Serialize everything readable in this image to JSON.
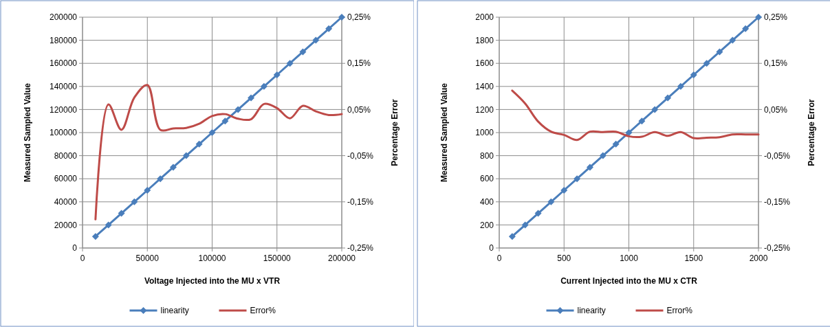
{
  "chart_data": [
    {
      "type": "line",
      "xlabel": "Voltage Injected into the MU x VTR",
      "ylabel": "Measured Sampled Value",
      "y2label": "Percentage Error",
      "x": [
        10000,
        20000,
        30000,
        40000,
        50000,
        60000,
        70000,
        80000,
        90000,
        100000,
        110000,
        120000,
        130000,
        140000,
        150000,
        160000,
        170000,
        180000,
        190000,
        200000
      ],
      "series": [
        {
          "name": "linearity",
          "color": "#4a7ebb",
          "marker": "diamond",
          "values": [
            10000,
            20000,
            30000,
            40000,
            50000,
            60000,
            70000,
            80000,
            90000,
            100000,
            110000,
            120000,
            130000,
            140000,
            150000,
            160000,
            170000,
            180000,
            190000,
            200000
          ]
        },
        {
          "name": "Error%",
          "color": "#be4b48",
          "marker": "none",
          "axis": "y2",
          "values": [
            -0.188,
            0.061,
            0.006,
            0.076,
            0.103,
            0.006,
            0.009,
            0.01,
            0.019,
            0.036,
            0.04,
            0.03,
            0.029,
            0.062,
            0.053,
            0.031,
            0.058,
            0.046,
            0.038,
            0.04
          ]
        }
      ],
      "xlim": [
        0,
        200000
      ],
      "xticks": [
        0,
        50000,
        100000,
        150000,
        200000
      ],
      "ylim": [
        0,
        200000
      ],
      "yticks": [
        0,
        20000,
        40000,
        60000,
        80000,
        100000,
        120000,
        140000,
        160000,
        180000,
        200000
      ],
      "y2lim": [
        -0.25,
        0.25
      ],
      "y2ticks": [
        {
          "value": -0.25,
          "label": "-0,25%"
        },
        {
          "value": -0.15,
          "label": "-0,15%"
        },
        {
          "value": -0.05,
          "label": "-0,05%"
        },
        {
          "value": 0.05,
          "label": "0,05%"
        },
        {
          "value": 0.15,
          "label": "0,15%"
        },
        {
          "value": 0.25,
          "label": "0,25%"
        }
      ],
      "grid": true,
      "legend": "bottom"
    },
    {
      "type": "line",
      "xlabel": "Current Injected into the MU x CTR",
      "ylabel": "Measured Sampled Value",
      "y2label": "Percentage Error",
      "x": [
        100,
        200,
        300,
        400,
        500,
        600,
        700,
        800,
        900,
        1000,
        1100,
        1200,
        1300,
        1400,
        1500,
        1600,
        1700,
        1800,
        1900,
        2000
      ],
      "series": [
        {
          "name": "linearity",
          "color": "#4a7ebb",
          "marker": "diamond",
          "values": [
            100,
            200,
            300,
            400,
            500,
            600,
            700,
            800,
            900,
            1000,
            1100,
            1200,
            1300,
            1400,
            1500,
            1600,
            1700,
            1800,
            1900,
            2000
          ]
        },
        {
          "name": "Error%",
          "color": "#be4b48",
          "marker": "none",
          "axis": "y2",
          "values": [
            0.091,
            0.063,
            0.024,
            0.002,
            -0.005,
            -0.016,
            0.002,
            0.001,
            0.002,
            -0.008,
            -0.009,
            0.001,
            -0.007,
            0.001,
            -0.012,
            -0.011,
            -0.01,
            -0.004,
            -0.004,
            -0.004
          ]
        }
      ],
      "xlim": [
        0,
        2000
      ],
      "xticks": [
        0,
        500,
        1000,
        1500,
        2000
      ],
      "ylim": [
        0,
        2000
      ],
      "yticks": [
        0,
        200,
        400,
        600,
        800,
        1000,
        1200,
        1400,
        1600,
        1800,
        2000
      ],
      "y2lim": [
        -0.25,
        0.25
      ],
      "y2ticks": [
        {
          "value": -0.25,
          "label": "-0,25%"
        },
        {
          "value": -0.15,
          "label": "-0,15%"
        },
        {
          "value": -0.05,
          "label": "-0,05%"
        },
        {
          "value": 0.05,
          "label": "0,05%"
        },
        {
          "value": 0.15,
          "label": "0,15%"
        },
        {
          "value": 0.25,
          "label": "0,25%"
        }
      ],
      "grid": true,
      "legend": "bottom"
    }
  ]
}
